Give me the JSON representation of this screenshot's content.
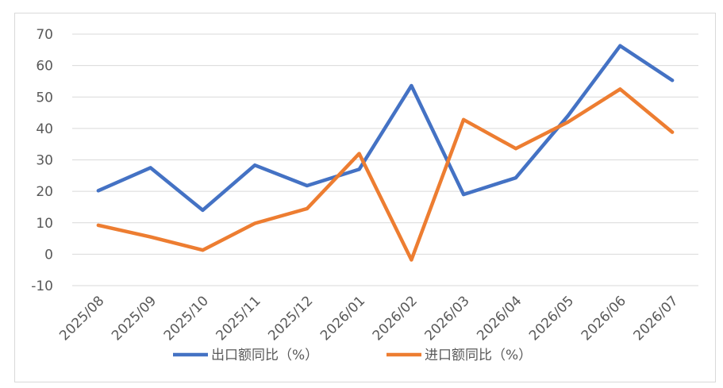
{
  "chart_data": {
    "type": "line",
    "categories": [
      "2025/08",
      "2025/09",
      "2025/10",
      "2025/11",
      "2025/12",
      "2026/01",
      "2026/02",
      "2026/03",
      "2026/04",
      "2026/05",
      "2026/06",
      "2026/07"
    ],
    "series": [
      {
        "name": "出口额同比（%）",
        "color": "#4472C4",
        "values": [
          20.2,
          27.5,
          14.0,
          28.3,
          21.8,
          27.0,
          53.6,
          19.0,
          24.3,
          44.0,
          66.3,
          55.3
        ]
      },
      {
        "name": "进口额同比（%）",
        "color": "#ED7D31",
        "values": [
          9.2,
          5.5,
          1.3,
          9.8,
          14.5,
          32.0,
          -1.8,
          42.8,
          33.6,
          42.0,
          52.5,
          38.8
        ]
      }
    ],
    "yticks": [
      "70",
      "60",
      "50",
      "40",
      "30",
      "20",
      "10",
      "0",
      "-10"
    ],
    "ylim": [
      -10,
      70
    ],
    "grid": true,
    "legend": "bottom",
    "title": "",
    "xlabel": "",
    "ylabel": ""
  }
}
